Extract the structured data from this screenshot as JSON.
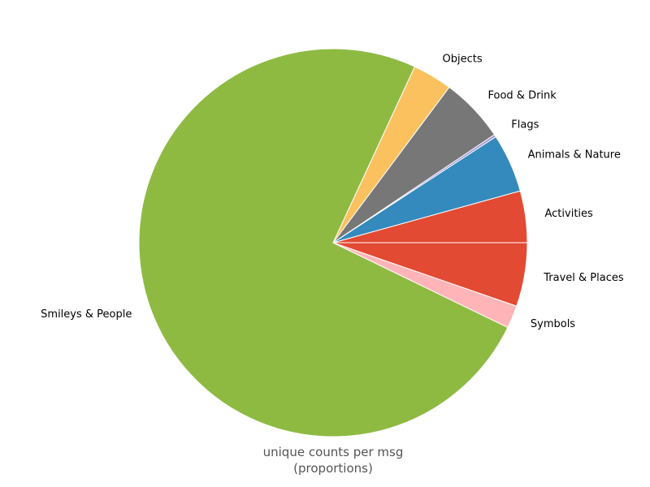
{
  "chart_data": {
    "type": "pie",
    "title": "",
    "xlabel_lines": [
      "unique counts per msg",
      "(proportions)"
    ],
    "start_angle_deg": 0,
    "direction": "counterclockwise",
    "slices": [
      {
        "label": "Activities",
        "value": 4.3,
        "color": "#E24A33"
      },
      {
        "label": "Animals & Nature",
        "value": 4.9,
        "color": "#348ABD"
      },
      {
        "label": "Flags",
        "value": 0.2,
        "color": "#988ED5"
      },
      {
        "label": "Food & Drink",
        "value": 5.4,
        "color": "#777777"
      },
      {
        "label": "Objects",
        "value": 3.3,
        "color": "#FBC15E"
      },
      {
        "label": "Smileys & People",
        "value": 74.7,
        "color": "#8EBA42"
      },
      {
        "label": "Symbols",
        "value": 1.9,
        "color": "#FFB5B8"
      },
      {
        "label": "Travel & Places",
        "value": 5.3,
        "color": "#E24A33"
      }
    ]
  }
}
